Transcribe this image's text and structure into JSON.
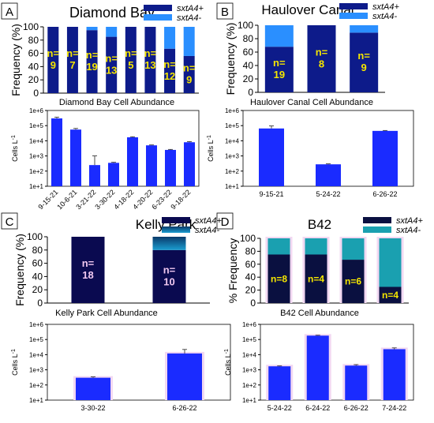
{
  "colors": {
    "positive_ab": "#0d1b8a",
    "negative_ab": "#2a8fff",
    "positive_c": "#0a0a50",
    "negative_c": "#1a9dd0",
    "positive_d": "#0a1040",
    "negative_d": "#1aa0b0",
    "abundance_bar": "#1a2bff",
    "bar_shadow": "#f2d8f2",
    "n_label": "#f5e600",
    "n_label_c": "#f0c8f0"
  },
  "legend": {
    "positive": "sxtA4+",
    "negative": "sxtA4-"
  },
  "chart_data": [
    {
      "panel": "A",
      "type": "bar",
      "stacked": true,
      "title": "Diamond Bay",
      "ylabel": "Frequency (%)",
      "ylim": [
        0,
        100
      ],
      "yticks": [
        "0",
        "20",
        "40",
        "60",
        "80",
        "100"
      ],
      "categories": [
        "9-15-21",
        "10-6-21",
        "3-21-22",
        "3-30-22",
        "4-18-22",
        "4-20-22",
        "6-23-22",
        "9-18-22"
      ],
      "series": [
        {
          "name": "sxtA4+",
          "values": [
            100,
            100,
            95,
            85,
            100,
            100,
            67,
            56
          ]
        },
        {
          "name": "sxtA4-",
          "values": [
            0,
            0,
            5,
            15,
            0,
            0,
            33,
            44
          ]
        }
      ],
      "n_labels": [
        "n=\n9",
        "n=\n7",
        "n=\n19",
        "n=\n13",
        "n=\n5",
        "n=\n13",
        "n=\n12",
        "n=\n9"
      ]
    },
    {
      "panel": "A",
      "type": "bar",
      "log_y": true,
      "title": "Diamond Bay Cell Abundance",
      "ylabel": "Cells L-1",
      "ylim": [
        10,
        1000000
      ],
      "yticks": [
        "1e+1",
        "1e+2",
        "1e+3",
        "1e+4",
        "1e+5",
        "1e+6"
      ],
      "categories": [
        "9-15-21",
        "10-6-21",
        "3-21-22",
        "3-30-22",
        "4-18-22",
        "4-20-22",
        "6-23-22",
        "9-18-22"
      ],
      "values": [
        300000,
        55000,
        250,
        350,
        17000,
        5000,
        2500,
        8000
      ],
      "errors_upper": [
        360000,
        65000,
        1000,
        380,
        18500,
        5300,
        2700,
        8800
      ]
    },
    {
      "panel": "B",
      "type": "bar",
      "stacked": true,
      "title": "Haulover Canal",
      "ylabel": "Frequency (%)",
      "ylim": [
        0,
        100
      ],
      "yticks": [
        "0",
        "20",
        "40",
        "60",
        "80",
        "100"
      ],
      "categories": [
        "9-15-21",
        "5-24-22",
        "6-26-22"
      ],
      "series": [
        {
          "name": "sxtA4+",
          "values": [
            68,
            100,
            89
          ]
        },
        {
          "name": "sxtA4-",
          "values": [
            32,
            0,
            11
          ]
        }
      ],
      "n_labels": [
        "n=\n19",
        "n=\n8",
        "n=\n9"
      ]
    },
    {
      "panel": "B",
      "type": "bar",
      "log_y": true,
      "title": "Haulover Canal Cell Abundance",
      "ylabel": "Cells L-1",
      "ylim": [
        10,
        1000000
      ],
      "yticks": [
        "1e+1",
        "1e+2",
        "1e+3",
        "1e+4",
        "1e+5",
        "1e+6"
      ],
      "categories": [
        "9-15-21",
        "5-24-22",
        "6-26-22"
      ],
      "values": [
        65000,
        280,
        45000
      ],
      "errors_upper": [
        95000,
        300,
        48000
      ]
    },
    {
      "panel": "C",
      "type": "bar",
      "stacked": true,
      "title": "Kelly Park",
      "ylabel": "Frequency (%)",
      "ylim": [
        0,
        100
      ],
      "yticks": [
        "0",
        "20",
        "40",
        "60",
        "80",
        "100"
      ],
      "categories": [
        "3-30-22",
        "6-26-22"
      ],
      "series": [
        {
          "name": "sxtA4+",
          "values": [
            100,
            80
          ]
        },
        {
          "name": "sxtA4-",
          "values": [
            0,
            20
          ]
        }
      ],
      "n_labels": [
        "n=\n18",
        "n=\n10"
      ]
    },
    {
      "panel": "C",
      "type": "bar",
      "log_y": true,
      "title": "Kelly Park Cell Abundance",
      "ylabel": "Cells L-1",
      "ylim": [
        10,
        1000000
      ],
      "yticks": [
        "1e+1",
        "1e+2",
        "1e+3",
        "1e+4",
        "1e+5",
        "1e+6"
      ],
      "categories": [
        "3-30-22",
        "6-26-22"
      ],
      "values": [
        300,
        12000
      ],
      "errors_upper": [
        340,
        22000
      ]
    },
    {
      "panel": "D",
      "type": "bar",
      "stacked": true,
      "title": "B42",
      "ylabel": "% Frequency",
      "ylim": [
        0,
        100
      ],
      "yticks": [
        "0",
        "20",
        "40",
        "60",
        "80",
        "100"
      ],
      "categories": [
        "5-24-22",
        "6-24-22",
        "6-26-22",
        "7-24-22"
      ],
      "series": [
        {
          "name": "sxtA4+",
          "values": [
            75,
            75,
            67,
            25
          ]
        },
        {
          "name": "sxtA4-",
          "values": [
            25,
            25,
            33,
            75
          ]
        }
      ],
      "n_labels": [
        "n=8",
        "n=4",
        "n=6",
        "n=4"
      ]
    },
    {
      "panel": "D",
      "type": "bar",
      "log_y": true,
      "title": "B42 Cell Abundance",
      "ylabel": "Cells L-1",
      "ylim": [
        10,
        1000000
      ],
      "yticks": [
        "1e+1",
        "1e+2",
        "1e+3",
        "1e+4",
        "1e+5",
        "1e+6"
      ],
      "categories": [
        "5-24-22",
        "6-24-22",
        "6-26-22",
        "7-24-22"
      ],
      "values": [
        1700,
        180000,
        1900,
        23000
      ],
      "errors_upper": [
        1800,
        190000,
        2200,
        28000
      ]
    }
  ]
}
